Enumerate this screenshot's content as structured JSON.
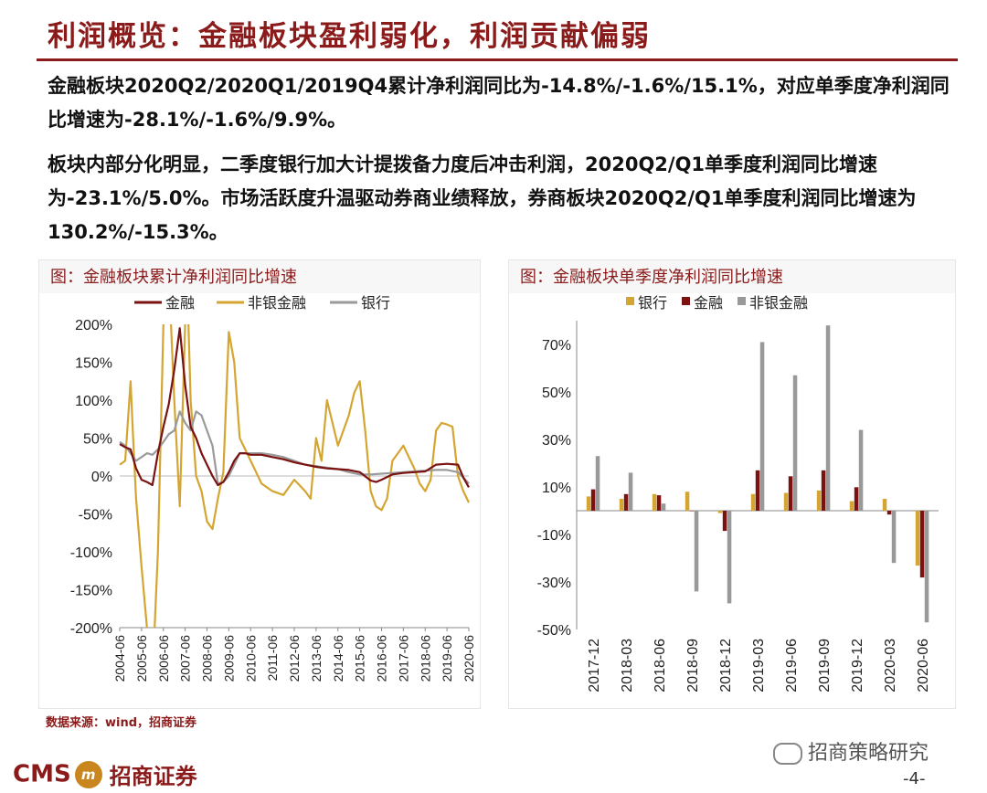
{
  "header": {
    "title": "利润概览：金融板块盈利弱化，利润贡献偏弱"
  },
  "paragraphs": [
    "金融板块2020Q2/2020Q1/2019Q4累计净利润同比为-14.8%/-1.6%/15.1%，对应单季度净利润同比增速为-28.1%/-1.6%/9.9%。",
    "板块内部分化明显，二季度银行加大计提拨备力度后冲击利润，2020Q2/Q1单季度利润同比增速为-23.1%/5.0%。市场活跃度升温驱动券商业绩释放，券商板块2020Q2/Q1单季度利润同比增速为130.2%/-15.3%。"
  ],
  "source": "数据来源：wind，招商证券",
  "brand": {
    "en": "CMS",
    "logo": "m",
    "cn": "招商证券"
  },
  "wechat": "招商策略研究",
  "page_number": "-4-",
  "colors": {
    "accent": "#8B1A1A",
    "bank": "#D4A531",
    "finance": "#7A1212",
    "nonbank": "#999999",
    "nonbank_line": "#D4A531",
    "bank_line": "#9a9a9a"
  },
  "chart_data": [
    {
      "type": "line",
      "title": "图：金融板块累计净利润同比增速",
      "xlabel": "",
      "ylabel": "",
      "ylim": [
        -200,
        200
      ],
      "yticks": [
        "200%",
        "150%",
        "100%",
        "50%",
        "0%",
        "-50%",
        "-100%",
        "-150%",
        "-200%"
      ],
      "xticks": [
        "2004-06",
        "2005-06",
        "2006-06",
        "2007-06",
        "2008-06",
        "2009-06",
        "2010-06",
        "2011-06",
        "2012-06",
        "2013-06",
        "2014-06",
        "2015-06",
        "2016-06",
        "2017-06",
        "2018-06",
        "2019-06",
        "2020-06"
      ],
      "legend": "top",
      "series": [
        {
          "name": "金融",
          "color": "#7A1212",
          "x": [
            2004.5,
            2004.75,
            2005.0,
            2005.25,
            2005.5,
            2005.75,
            2006.0,
            2006.25,
            2006.5,
            2006.75,
            2007.0,
            2007.25,
            2007.5,
            2007.75,
            2008.0,
            2008.25,
            2008.5,
            2008.75,
            2009.0,
            2009.25,
            2009.5,
            2009.75,
            2010.0,
            2010.25,
            2010.5,
            2010.75,
            2011.0,
            2011.5,
            2012.0,
            2012.5,
            2013.0,
            2013.5,
            2014.0,
            2014.5,
            2015.0,
            2015.5,
            2016.0,
            2016.25,
            2016.5,
            2017.0,
            2017.5,
            2018.0,
            2018.5,
            2019.0,
            2019.5,
            2020.0,
            2020.25,
            2020.5
          ],
          "y": [
            42,
            38,
            35,
            10,
            -5,
            -8,
            -12,
            30,
            65,
            95,
            140,
            195,
            120,
            65,
            50,
            30,
            15,
            0,
            -12,
            -8,
            5,
            20,
            30,
            30,
            28,
            28,
            28,
            25,
            22,
            18,
            15,
            12,
            10,
            9,
            8,
            5,
            -6,
            -8,
            -5,
            2,
            4,
            5,
            6,
            15,
            16,
            15,
            -2,
            -15
          ]
        },
        {
          "name": "非银金融",
          "color": "#D4A531",
          "x": [
            2004.5,
            2004.75,
            2005.0,
            2005.1,
            2005.25,
            2005.5,
            2005.75,
            2006.0,
            2006.1,
            2006.25,
            2006.5,
            2006.7,
            2006.85,
            2007.0,
            2007.25,
            2007.5,
            2007.6,
            2007.75,
            2008.0,
            2008.25,
            2008.5,
            2008.75,
            2009.0,
            2009.25,
            2009.5,
            2009.75,
            2010.0,
            2010.5,
            2011.0,
            2011.5,
            2012.0,
            2012.5,
            2013.0,
            2013.25,
            2013.5,
            2013.75,
            2014.0,
            2014.5,
            2015.0,
            2015.25,
            2015.5,
            2015.75,
            2016.0,
            2016.25,
            2016.5,
            2016.75,
            2017.0,
            2017.5,
            2018.0,
            2018.25,
            2018.5,
            2018.75,
            2019.0,
            2019.25,
            2019.5,
            2019.75,
            2020.0,
            2020.25,
            2020.5
          ],
          "y": [
            15,
            20,
            125,
            60,
            -30,
            -120,
            -200,
            -210,
            -200,
            -100,
            200,
            210,
            200,
            100,
            -40,
            200,
            250,
            100,
            0,
            -20,
            -60,
            -70,
            -30,
            5,
            190,
            150,
            50,
            20,
            -10,
            -20,
            -25,
            -5,
            -20,
            -30,
            50,
            20,
            100,
            40,
            80,
            110,
            125,
            60,
            -20,
            -40,
            -45,
            -30,
            20,
            40,
            10,
            -10,
            -20,
            -5,
            60,
            70,
            68,
            65,
            0,
            -20,
            -35
          ]
        },
        {
          "name": "银行",
          "color": "#9a9a9a",
          "x": [
            2004.5,
            2004.75,
            2005.0,
            2005.25,
            2005.5,
            2005.75,
            2006.0,
            2006.25,
            2006.5,
            2006.75,
            2007.0,
            2007.25,
            2007.5,
            2007.75,
            2008.0,
            2008.25,
            2008.5,
            2008.75,
            2009.0,
            2009.25,
            2009.5,
            2009.75,
            2010.0,
            2010.5,
            2011.0,
            2011.5,
            2012.0,
            2012.5,
            2013.0,
            2013.5,
            2014.0,
            2014.5,
            2015.0,
            2015.5,
            2016.0,
            2016.5,
            2017.0,
            2017.5,
            2018.0,
            2018.5,
            2019.0,
            2019.5,
            2020.0,
            2020.25,
            2020.5
          ],
          "y": [
            45,
            40,
            30,
            20,
            25,
            30,
            28,
            35,
            45,
            55,
            60,
            85,
            70,
            60,
            85,
            80,
            60,
            40,
            -10,
            -8,
            0,
            15,
            30,
            30,
            30,
            28,
            25,
            20,
            15,
            13,
            11,
            9,
            5,
            2,
            2,
            3,
            4,
            5,
            6,
            7,
            8,
            8,
            5,
            -2,
            -10
          ]
        }
      ]
    },
    {
      "type": "bar",
      "title": "图：金融板块单季度净利润同比增速",
      "xlabel": "",
      "ylabel": "",
      "ylim": [
        -50,
        80
      ],
      "yticks": [
        "70%",
        "50%",
        "30%",
        "10%",
        "-10%",
        "-30%",
        "-50%"
      ],
      "categories": [
        "2017-12",
        "2018-03",
        "2018-06",
        "2018-09",
        "2018-12",
        "2019-03",
        "2019-06",
        "2019-09",
        "2019-12",
        "2020-03",
        "2020-06"
      ],
      "legend": "top",
      "series": [
        {
          "name": "银行",
          "color": "#D4A531",
          "values": [
            6,
            5,
            7,
            8,
            -1,
            7,
            7.5,
            8.5,
            4,
            5,
            -23.1
          ]
        },
        {
          "name": "金融",
          "color": "#7A1212",
          "values": [
            9,
            7,
            6.5,
            0,
            -8.5,
            17,
            14.5,
            17,
            9.9,
            -1.6,
            -28.1
          ]
        },
        {
          "name": "非银金融",
          "color": "#999999",
          "values": [
            23,
            16,
            3,
            -34,
            -39,
            71,
            57,
            78,
            34,
            -22,
            -47
          ]
        }
      ]
    }
  ]
}
